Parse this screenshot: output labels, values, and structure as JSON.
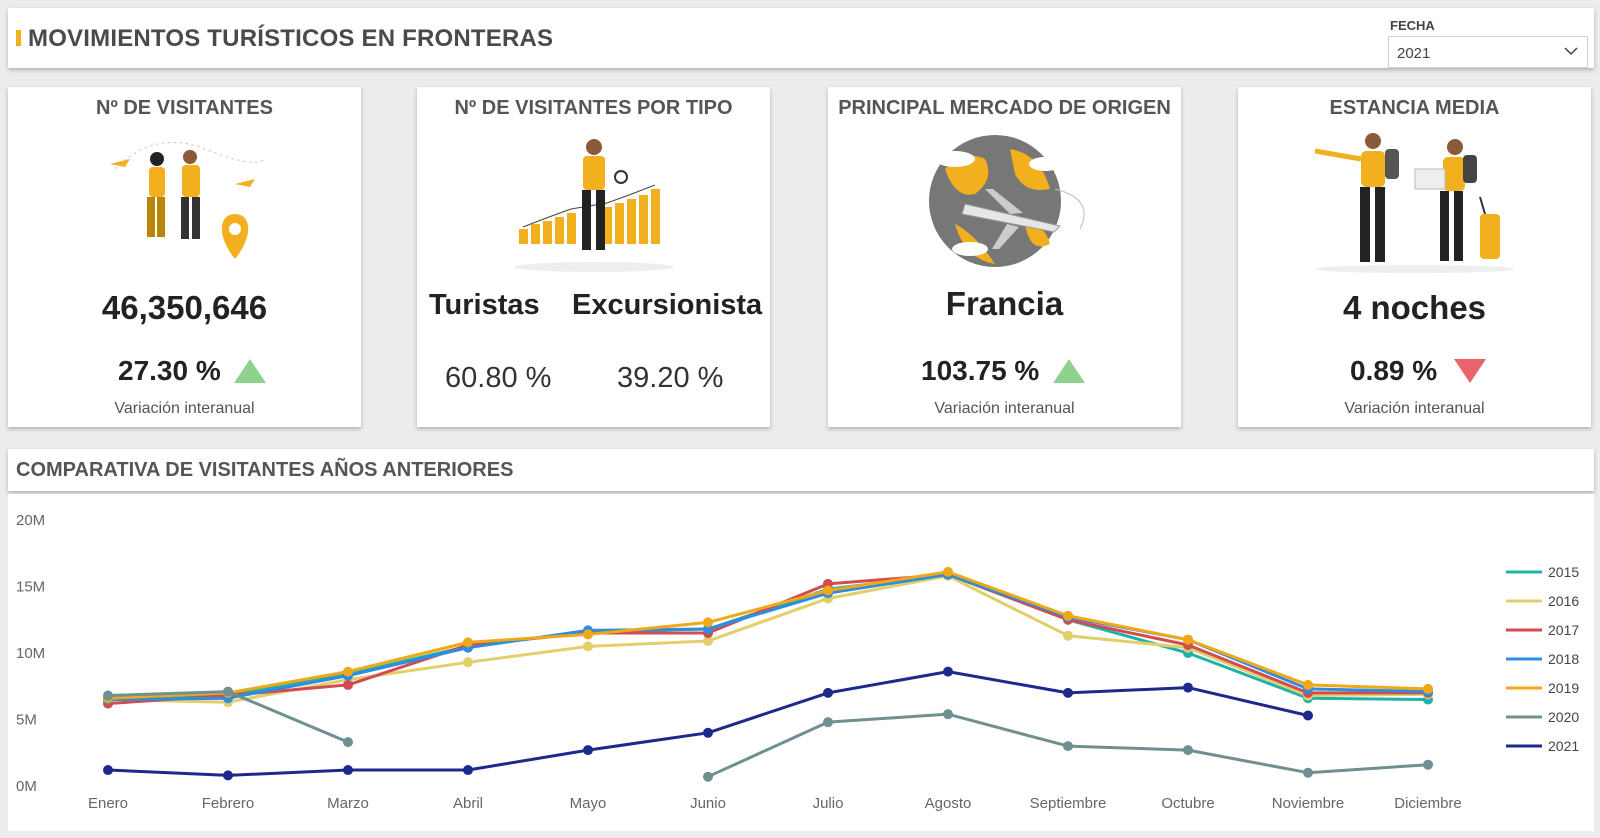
{
  "header": {
    "title": "MOVIMIENTOS TURÍSTICOS EN FRONTERAS",
    "filter_label": "FECHA",
    "filter_value": "2021",
    "accent_color": "#f2b01e"
  },
  "kpis": {
    "visitantes": {
      "title": "Nº DE VISITANTES",
      "value": "46,350,646",
      "variation": "27.30 %",
      "trend": "up",
      "subtitle": "Variación interanual"
    },
    "tipo": {
      "title": "Nº DE VISITANTES POR TIPO",
      "label_1": "Turistas",
      "label_2": "Excursionista",
      "pct_1": "60.80 %",
      "pct_2": "39.20 %"
    },
    "mercado": {
      "title": "PRINCIPAL MERCADO DE ORIGEN",
      "value": "Francia",
      "variation": "103.75 %",
      "trend": "up",
      "subtitle": "Variación interanual"
    },
    "estancia": {
      "title": "ESTANCIA MEDIA",
      "value": "4 noches",
      "variation": "0.89 %",
      "trend": "down",
      "subtitle": "Variación interanual"
    }
  },
  "colors": {
    "up": "#8fd18f",
    "down": "#e8636b"
  },
  "chart_title": "COMPARATIVA DE VISITANTES AÑOS ANTERIORES",
  "chart_data": {
    "type": "line",
    "title": "COMPARATIVA DE VISITANTES AÑOS ANTERIORES",
    "categories": [
      "Enero",
      "Febrero",
      "Marzo",
      "Abril",
      "Mayo",
      "Junio",
      "Julio",
      "Agosto",
      "Septiembre",
      "Octubre",
      "Noviembre",
      "Diciembre"
    ],
    "y_ticks": [
      "0M",
      "5M",
      "10M",
      "15M",
      "20M"
    ],
    "ylim": [
      0,
      20
    ],
    "y_unit": "M",
    "legend_position": "right",
    "series": [
      {
        "name": "2015",
        "color": "#1fb3a8",
        "values": [
          6.6,
          6.8,
          8.4,
          10.5,
          11.6,
          11.8,
          14.8,
          15.9,
          12.5,
          10.0,
          6.6,
          6.5
        ]
      },
      {
        "name": "2016",
        "color": "#e2cf6b",
        "values": [
          6.5,
          6.3,
          8.0,
          9.3,
          10.5,
          10.9,
          14.1,
          15.8,
          11.3,
          10.4,
          6.8,
          6.9
        ]
      },
      {
        "name": "2017",
        "color": "#d24b52",
        "values": [
          6.2,
          6.8,
          7.6,
          10.6,
          11.5,
          11.5,
          15.2,
          15.9,
          12.5,
          10.6,
          7.0,
          7.0
        ]
      },
      {
        "name": "2018",
        "color": "#2e8de0",
        "values": [
          6.5,
          6.6,
          8.3,
          10.4,
          11.7,
          11.8,
          14.5,
          15.9,
          12.7,
          11.0,
          7.3,
          7.1
        ]
      },
      {
        "name": "2019",
        "color": "#f0a817",
        "values": [
          6.6,
          7.0,
          8.6,
          10.8,
          11.4,
          12.3,
          14.7,
          16.1,
          12.8,
          11.0,
          7.6,
          7.3
        ]
      },
      {
        "name": "2020",
        "color": "#6f8f91",
        "values": [
          6.8,
          7.1,
          3.3,
          null,
          null,
          0.7,
          4.8,
          5.4,
          3.0,
          2.7,
          1.0,
          1.6
        ]
      },
      {
        "name": "2021",
        "color": "#1d2a8c",
        "values": [
          1.2,
          0.8,
          1.2,
          1.2,
          2.7,
          4.0,
          7.0,
          8.6,
          7.0,
          7.4,
          5.3,
          null
        ]
      }
    ]
  }
}
